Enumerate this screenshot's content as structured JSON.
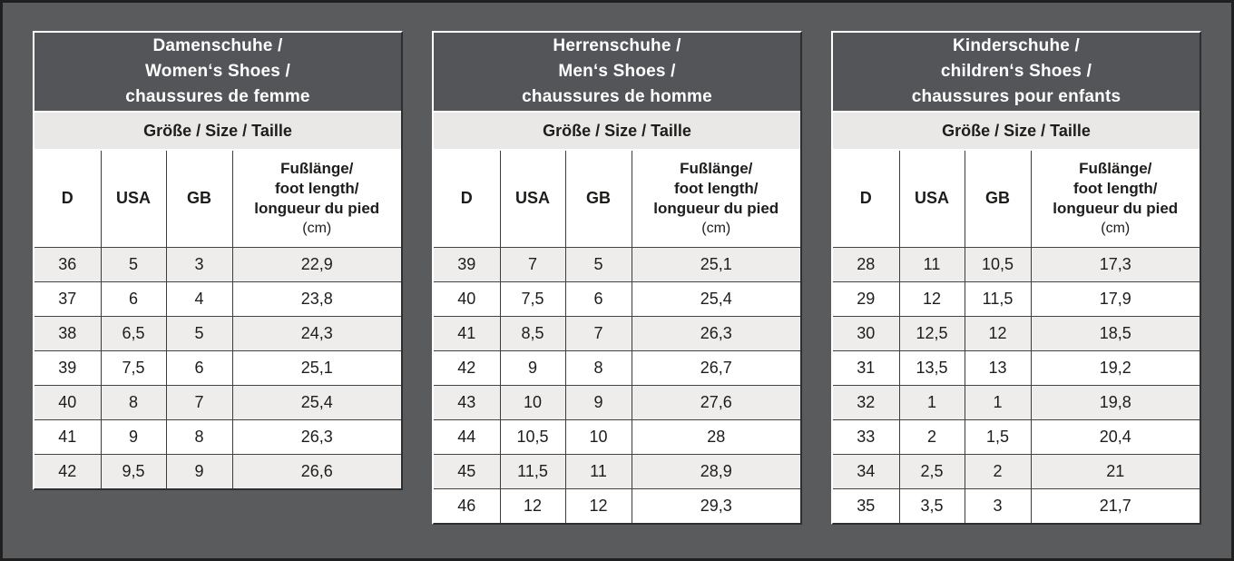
{
  "colors": {
    "page_background": "#5a5b5d",
    "title_band_background": "#545558",
    "title_band_text": "#ffffff",
    "subtitle_band_background": "#e9e8e6",
    "row_alt_background": "#eeedeb",
    "row_background": "#ffffff",
    "text": "#1d1d1b"
  },
  "chart_data": [
    {
      "type": "table",
      "title_lines": [
        "Damenschuhe /",
        "Women‘s Shoes /",
        "chaussures de femme"
      ],
      "subtitle": "Größe / Size / Taille",
      "columns": [
        "D",
        "USA",
        "GB"
      ],
      "length_column_lines": [
        "Fußlänge/",
        "foot length/",
        "longueur du pied",
        "(cm)"
      ],
      "rows": [
        [
          "36",
          "5",
          "3",
          "22,9"
        ],
        [
          "37",
          "6",
          "4",
          "23,8"
        ],
        [
          "38",
          "6,5",
          "5",
          "24,3"
        ],
        [
          "39",
          "7,5",
          "6",
          "25,1"
        ],
        [
          "40",
          "8",
          "7",
          "25,4"
        ],
        [
          "41",
          "9",
          "8",
          "26,3"
        ],
        [
          "42",
          "9,5",
          "9",
          "26,6"
        ]
      ]
    },
    {
      "type": "table",
      "title_lines": [
        "Herrenschuhe /",
        "Men‘s Shoes /",
        "chaussures de homme"
      ],
      "subtitle": "Größe / Size / Taille",
      "columns": [
        "D",
        "USA",
        "GB"
      ],
      "length_column_lines": [
        "Fußlänge/",
        "foot length/",
        "longueur du pied",
        "(cm)"
      ],
      "rows": [
        [
          "39",
          "7",
          "5",
          "25,1"
        ],
        [
          "40",
          "7,5",
          "6",
          "25,4"
        ],
        [
          "41",
          "8,5",
          "7",
          "26,3"
        ],
        [
          "42",
          "9",
          "8",
          "26,7"
        ],
        [
          "43",
          "10",
          "9",
          "27,6"
        ],
        [
          "44",
          "10,5",
          "10",
          "28"
        ],
        [
          "45",
          "11,5",
          "11",
          "28,9"
        ],
        [
          "46",
          "12",
          "12",
          "29,3"
        ]
      ]
    },
    {
      "type": "table",
      "title_lines": [
        "Kinderschuhe /",
        "children‘s Shoes /",
        "chaussures pour enfants"
      ],
      "subtitle": "Größe / Size / Taille",
      "columns": [
        "D",
        "USA",
        "GB"
      ],
      "length_column_lines": [
        "Fußlänge/",
        "foot length/",
        "longueur du pied",
        "(cm)"
      ],
      "rows": [
        [
          "28",
          "11",
          "10,5",
          "17,3"
        ],
        [
          "29",
          "12",
          "11,5",
          "17,9"
        ],
        [
          "30",
          "12,5",
          "12",
          "18,5"
        ],
        [
          "31",
          "13,5",
          "13",
          "19,2"
        ],
        [
          "32",
          "1",
          "1",
          "19,8"
        ],
        [
          "33",
          "2",
          "1,5",
          "20,4"
        ],
        [
          "34",
          "2,5",
          "2",
          "21"
        ],
        [
          "35",
          "3,5",
          "3",
          "21,7"
        ]
      ]
    }
  ]
}
